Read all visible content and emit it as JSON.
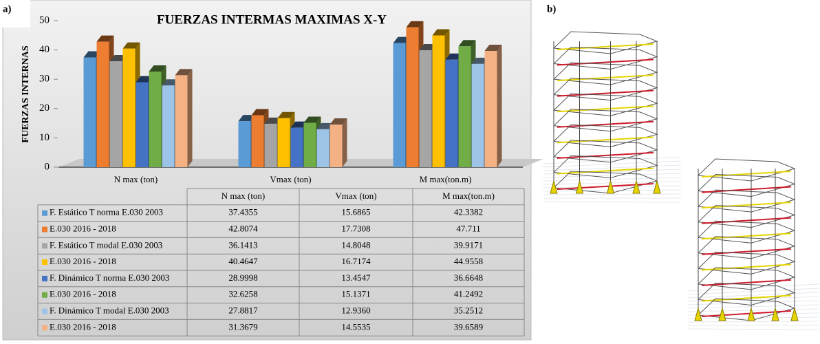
{
  "chart_data": {
    "type": "bar",
    "title": "FUERZAS INTERMAS  MAXIMAS X-Y",
    "y_label": "FUERZAS  INTERNAS",
    "panel_labels": [
      "a)",
      "b)"
    ],
    "categories": [
      "N max (ton)",
      "Vmax (ton)",
      "M max(ton.m)"
    ],
    "ylim": [
      0,
      50
    ],
    "yticks": [
      0,
      10,
      20,
      30,
      40,
      50
    ],
    "grid": false,
    "series": [
      {
        "name": "F. Estático T norma E.030 2003",
        "color": "#5b9bd5",
        "values": [
          37.4355,
          15.6865,
          42.3382
        ],
        "value_labels": [
          "37.4355",
          "15.6865",
          "42.3382"
        ]
      },
      {
        "name": "E.030 2016 - 2018",
        "color": "#ed7d31",
        "values": [
          42.8074,
          17.7308,
          47.711
        ],
        "value_labels": [
          "42.8074",
          "17.7308",
          "47.711"
        ]
      },
      {
        "name": "F. Estático T modal E.030 2003",
        "color": "#a5a5a5",
        "values": [
          36.1413,
          14.8048,
          39.9171
        ],
        "value_labels": [
          "36.1413",
          "14.8048",
          "39.9171"
        ]
      },
      {
        "name": "E.030 2016 - 2018",
        "color": "#ffc000",
        "values": [
          40.4647,
          16.7174,
          44.9558
        ],
        "value_labels": [
          "40.4647",
          "16.7174",
          "44.9558"
        ]
      },
      {
        "name": "F. Dinámico T norma E.030 2003",
        "color": "#4472c4",
        "values": [
          28.9998,
          13.4547,
          36.6648
        ],
        "value_labels": [
          "28.9998",
          "13.4547",
          "36.6648"
        ]
      },
      {
        "name": "E.030 2016 - 2018",
        "color": "#70ad47",
        "values": [
          32.6258,
          15.1371,
          41.2492
        ],
        "value_labels": [
          "32.6258",
          "15.1371",
          "41.2492"
        ]
      },
      {
        "name": "F. Dinámico T modal E.030 2003",
        "color": "#9dc3e6",
        "values": [
          27.8817,
          12.936,
          35.2512
        ],
        "value_labels": [
          "27.8817",
          "12.9360",
          "35.2512"
        ]
      },
      {
        "name": "E.030 2016 - 2018",
        "color": "#f4b183",
        "values": [
          31.3679,
          14.5535,
          39.6589
        ],
        "value_labels": [
          "31.3679",
          "14.5535",
          "39.6589"
        ]
      }
    ]
  }
}
